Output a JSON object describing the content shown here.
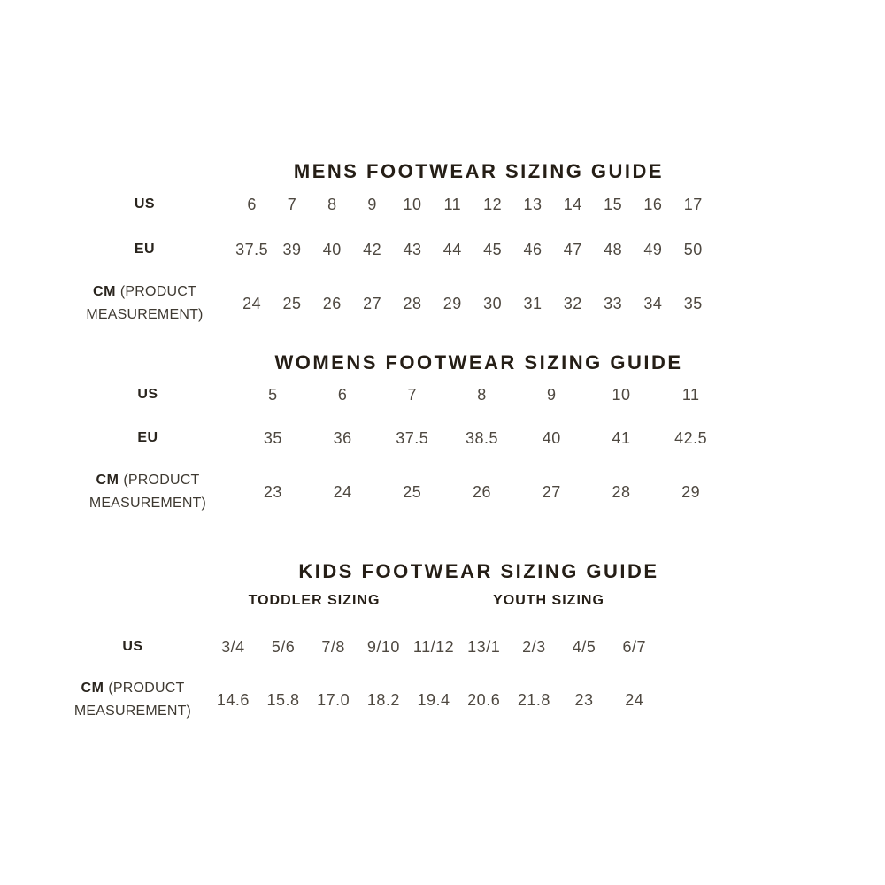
{
  "colors": {
    "background": "#ffffff",
    "title_text": "#251e16",
    "label_text": "#29241d",
    "value_text": "#4e4840"
  },
  "mens": {
    "title": "MENS FOOTWEAR SIZING GUIDE",
    "row_labels": {
      "us": "US",
      "eu": "EU",
      "cm": "CM",
      "cm_suffix": "(PRODUCT MEASUREMENT)"
    },
    "us": [
      "6",
      "7",
      "8",
      "9",
      "10",
      "11",
      "12",
      "13",
      "14",
      "15",
      "16",
      "17"
    ],
    "eu": [
      "37.5",
      "39",
      "40",
      "42",
      "43",
      "44",
      "45",
      "46",
      "47",
      "48",
      "49",
      "50"
    ],
    "cm": [
      "24",
      "25",
      "26",
      "27",
      "28",
      "29",
      "30",
      "31",
      "32",
      "33",
      "34",
      "35"
    ]
  },
  "womens": {
    "title": "WOMENS FOOTWEAR SIZING GUIDE",
    "row_labels": {
      "us": "US",
      "eu": "EU",
      "cm": "CM",
      "cm_suffix": "(PRODUCT MEASUREMENT)"
    },
    "us": [
      "5",
      "6",
      "7",
      "8",
      "9",
      "10",
      "11"
    ],
    "eu": [
      "35",
      "36",
      "37.5",
      "38.5",
      "40",
      "41",
      "42.5"
    ],
    "cm": [
      "23",
      "24",
      "25",
      "26",
      "27",
      "28",
      "29"
    ]
  },
  "kids": {
    "title": "KIDS FOOTWEAR SIZING GUIDE",
    "subheaders": {
      "toddler": "TODDLER SIZING",
      "youth": "YOUTH SIZING"
    },
    "row_labels": {
      "us": "US",
      "cm": "CM",
      "cm_suffix": "(PRODUCT MEASUREMENT)"
    },
    "us": [
      "3/4",
      "5/6",
      "7/8",
      "9/10",
      "11/12",
      "13/1",
      "2/3",
      "4/5",
      "6/7"
    ],
    "cm": [
      "14.6",
      "15.8",
      "17.0",
      "18.2",
      "19.4",
      "20.6",
      "21.8",
      "23",
      "24"
    ]
  }
}
